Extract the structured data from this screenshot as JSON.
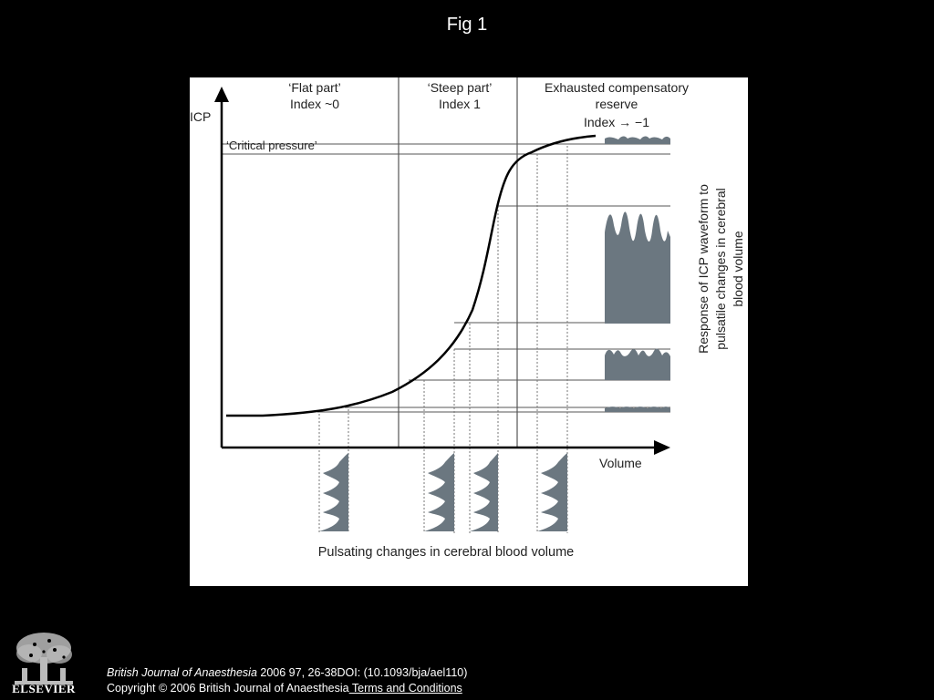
{
  "slide": {
    "title": "Fig 1"
  },
  "figure": {
    "y_axis_label": "ICP",
    "x_axis_label": "Volume",
    "critical_pressure": "‘Critical pressure’",
    "regions": [
      {
        "line1": "‘Flat part’",
        "line2": "Index ~0",
        "line3": ""
      },
      {
        "line1": "‘Steep part’",
        "line2": "Index 1",
        "line3": ""
      },
      {
        "line1": "Exhausted compensatory",
        "line2": "reserve",
        "line3": "Index → −1"
      }
    ],
    "response_label": [
      "Response of ICP waveform to",
      "pulsatile changes in cerebral",
      "blood volume"
    ],
    "bottom_label": "Pulsating changes in cerebral blood volume"
  },
  "logo": {
    "word": "ELSEVIER"
  },
  "citation": {
    "journal": "British Journal of Anaesthesia",
    "ref": " 2006 97, 26-38DOI: (10.1093/bja/ael110)",
    "copyright": "Copyright © 2006 British Journal of Anaesthesia",
    "terms": " Terms and Conditions"
  },
  "colors": {
    "background": "#000000",
    "panel": "#ffffff",
    "ink": "#000000",
    "grid": "#555555",
    "waveform": "#6b7780"
  }
}
